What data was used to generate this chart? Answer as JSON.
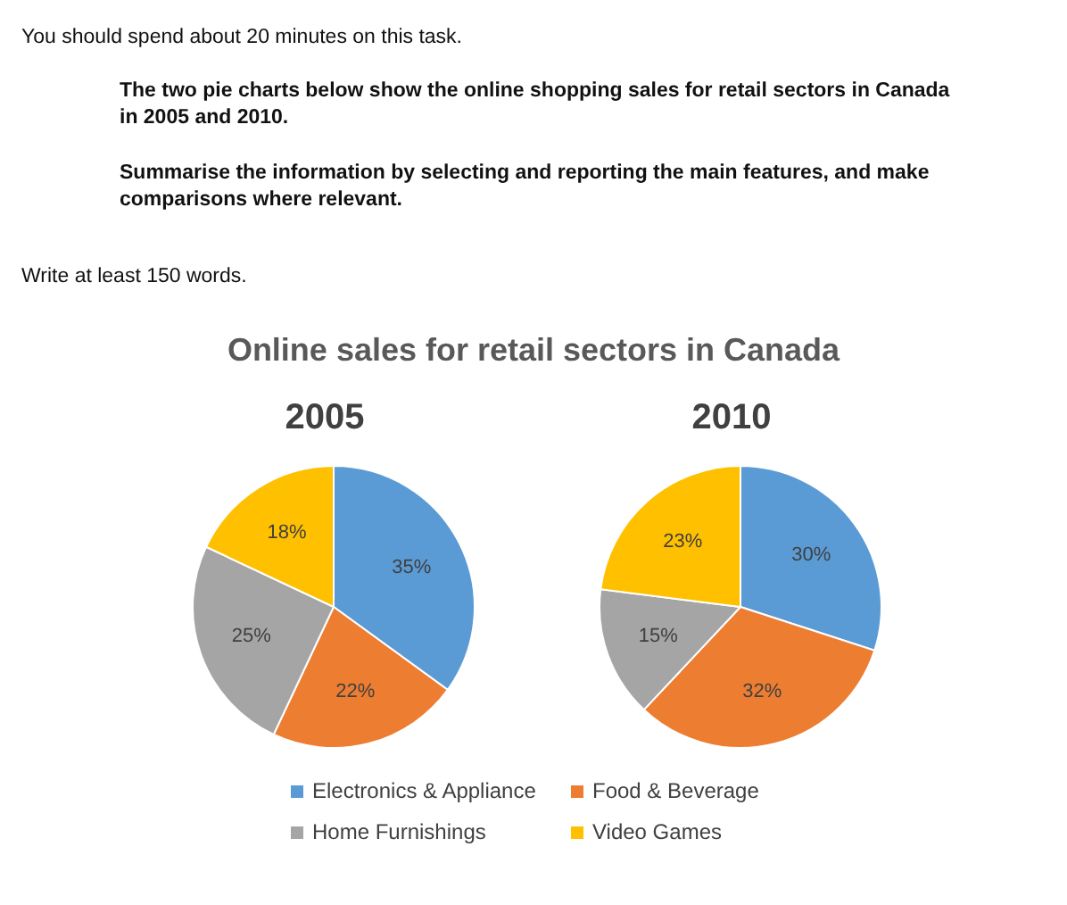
{
  "chart_data": {
    "type": "pie",
    "title": "Online sales for retail sectors in Canada",
    "categories": [
      "Electronics & Appliance",
      "Food & Beverage",
      "Home Furnishings",
      "Video Games"
    ],
    "colors": [
      "#5b9bd5",
      "#ed7d31",
      "#a5a5a5",
      "#ffc000"
    ],
    "legend": "bottom",
    "series": [
      {
        "name": "2005",
        "values": [
          35,
          22,
          25,
          18
        ],
        "value_labels": [
          "35%",
          "22%",
          "25%",
          "18%"
        ]
      },
      {
        "name": "2010",
        "values": [
          30,
          32,
          15,
          23
        ],
        "value_labels": [
          "30%",
          "32%",
          "15%",
          "23%"
        ]
      }
    ],
    "annotations": [
      "You should spend about 20 minutes on this task.",
      "The two pie charts below show the online shopping sales for retail sectors in Canada in 2005 and 2010.",
      "Summarise the information by selecting and reporting the main features, and make comparisons where relevant.",
      "Write at least 150 words."
    ]
  }
}
